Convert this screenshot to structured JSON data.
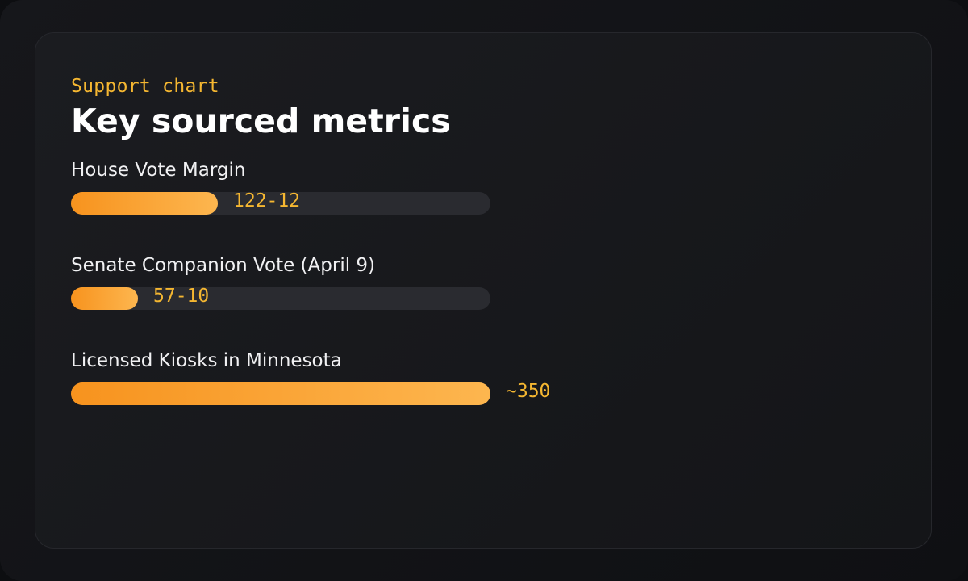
{
  "header": {
    "eyebrow": "Support chart",
    "title": "Key sourced metrics"
  },
  "colors": {
    "accent": "#f5b731",
    "bar_start": "#f7931e",
    "bar_end": "#fdb64f",
    "track": "#2a2b30"
  },
  "chart_data": {
    "type": "bar",
    "orientation": "horizontal",
    "title": "Key sourced metrics",
    "categories": [
      "House Vote Margin",
      "Senate Companion Vote (April 9)",
      "Licensed Kiosks in Minnesota"
    ],
    "value_labels": [
      "122-12",
      "57-10",
      "~350"
    ],
    "fractions": [
      0.35,
      0.16,
      1.0
    ]
  }
}
